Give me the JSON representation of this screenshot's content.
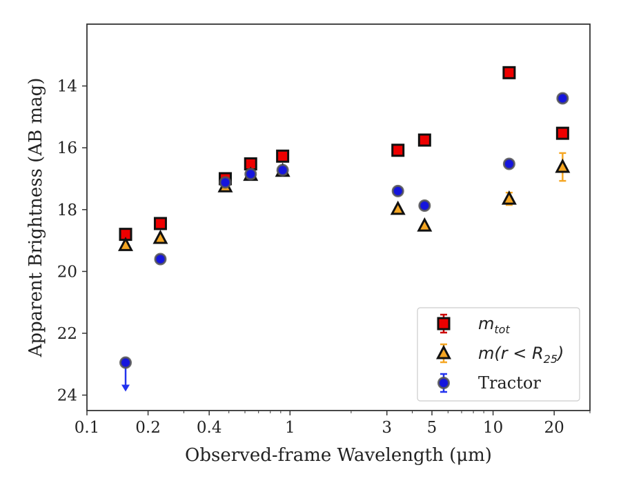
{
  "chart_data": {
    "type": "scatter",
    "title": "",
    "xlabel": "Observed-frame Wavelength (μm)",
    "ylabel": "Apparent Brightness (AB mag)",
    "xscale": "log",
    "xlim": [
      0.1,
      30
    ],
    "ylim": [
      24.5,
      12
    ],
    "y_inverted": true,
    "x_ticks": [
      0.1,
      0.2,
      0.4,
      1,
      3,
      5,
      10,
      20
    ],
    "x_tick_labels": [
      "0.1",
      "0.2",
      "0.4",
      "1",
      "3",
      "5",
      "10",
      "20"
    ],
    "y_ticks": [
      14,
      16,
      18,
      20,
      22,
      24
    ],
    "y_tick_labels": [
      "14",
      "16",
      "18",
      "20",
      "22",
      "24"
    ],
    "grid": false,
    "legend_position": "lower-right",
    "series": [
      {
        "name": "m_tot",
        "legend_label": {
          "main": "m",
          "sub": "tot"
        },
        "marker": "square",
        "face_color": "#ee0000",
        "edge_color": "#111111",
        "error_color": "#cc0000",
        "points": [
          {
            "x": 0.155,
            "y": 18.8,
            "err": 0.05
          },
          {
            "x": 0.23,
            "y": 18.45,
            "err": 0.05
          },
          {
            "x": 0.48,
            "y": 17.0,
            "err": 0.05
          },
          {
            "x": 0.64,
            "y": 16.52,
            "err": 0.05
          },
          {
            "x": 0.92,
            "y": 16.27,
            "err": 0.05
          },
          {
            "x": 3.4,
            "y": 16.08,
            "err": 0.05
          },
          {
            "x": 4.6,
            "y": 15.75,
            "err": 0.05
          },
          {
            "x": 12.0,
            "y": 13.57,
            "err": 0.05
          },
          {
            "x": 22.0,
            "y": 15.53,
            "err": 0.05
          }
        ]
      },
      {
        "name": "m(r < R25)",
        "legend_label": {
          "main": "m(r < R",
          "sub": "25",
          "tail": ")"
        },
        "marker": "triangle",
        "face_color": "#f5a623",
        "edge_color": "#111111",
        "error_color": "#f5a623",
        "points": [
          {
            "x": 0.155,
            "y": 19.15,
            "err": 0.05
          },
          {
            "x": 0.23,
            "y": 18.92,
            "err": 0.05
          },
          {
            "x": 0.48,
            "y": 17.25,
            "err": 0.05
          },
          {
            "x": 0.64,
            "y": 16.88,
            "err": 0.05
          },
          {
            "x": 0.92,
            "y": 16.75,
            "err": 0.05
          },
          {
            "x": 3.4,
            "y": 17.98,
            "err": 0.05
          },
          {
            "x": 4.6,
            "y": 18.52,
            "err": 0.05
          },
          {
            "x": 12.0,
            "y": 17.65,
            "err": 0.2
          },
          {
            "x": 22.0,
            "y": 16.62,
            "err": 0.45
          }
        ]
      },
      {
        "name": "Tractor",
        "legend_label": {
          "main": "Tractor"
        },
        "marker": "circle",
        "face_color": "#1515dd",
        "edge_color": "#555555",
        "error_color": "#2233ee",
        "points": [
          {
            "x": 0.155,
            "y": 22.95,
            "err": 0,
            "upper_limit": true
          },
          {
            "x": 0.23,
            "y": 19.6,
            "err": 0.05
          },
          {
            "x": 0.48,
            "y": 17.12,
            "err": 0.05
          },
          {
            "x": 0.64,
            "y": 16.85,
            "err": 0.05
          },
          {
            "x": 0.92,
            "y": 16.72,
            "err": 0.05
          },
          {
            "x": 3.4,
            "y": 17.4,
            "err": 0.05
          },
          {
            "x": 4.6,
            "y": 17.87,
            "err": 0.05
          },
          {
            "x": 12.0,
            "y": 16.52,
            "err": 0.05
          },
          {
            "x": 22.0,
            "y": 14.4,
            "err": 0.05
          }
        ]
      }
    ]
  }
}
